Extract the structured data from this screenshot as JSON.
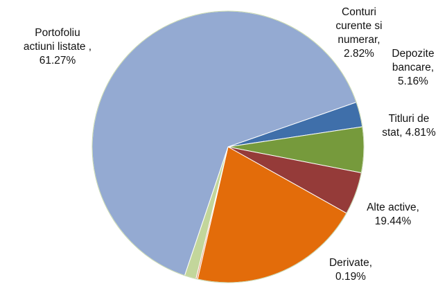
{
  "chart_data": {
    "type": "pie",
    "title": "",
    "legend": "none",
    "slices": [
      {
        "name": "Conturi curente si numerar",
        "value": 2.82,
        "label_lines": [
          "Conturi",
          "curente si",
          "numerar,",
          "2.82%"
        ],
        "color": "#3f6faa"
      },
      {
        "name": "Depozite bancare",
        "value": 5.16,
        "label_lines": [
          "Depozite",
          "bancare,",
          "5.16%"
        ],
        "color": "#769a3c"
      },
      {
        "name": "Titluri de stat",
        "value": 4.81,
        "label_lines": [
          "Titluri de",
          "stat, 4.81%"
        ],
        "color": "#953b39"
      },
      {
        "name": "Alte active",
        "value": 19.44,
        "label_lines": [
          "Alte active,",
          "19.44%"
        ],
        "color": "#e36c0a"
      },
      {
        "name": "Derivate",
        "value": 0.19,
        "label_lines": [
          "Derivate,",
          "0.19%"
        ],
        "color": "#e7a07a"
      },
      {
        "name": "Unlabeled slice",
        "value": 1.31,
        "label_lines": [],
        "color": "#c3d69b"
      },
      {
        "name": "Portofoliu actiuni listate",
        "value": 61.27,
        "label_lines": [
          "Portofoliu",
          "actiuni listate ,",
          "61.27%"
        ],
        "color": "#94aad2"
      }
    ]
  }
}
